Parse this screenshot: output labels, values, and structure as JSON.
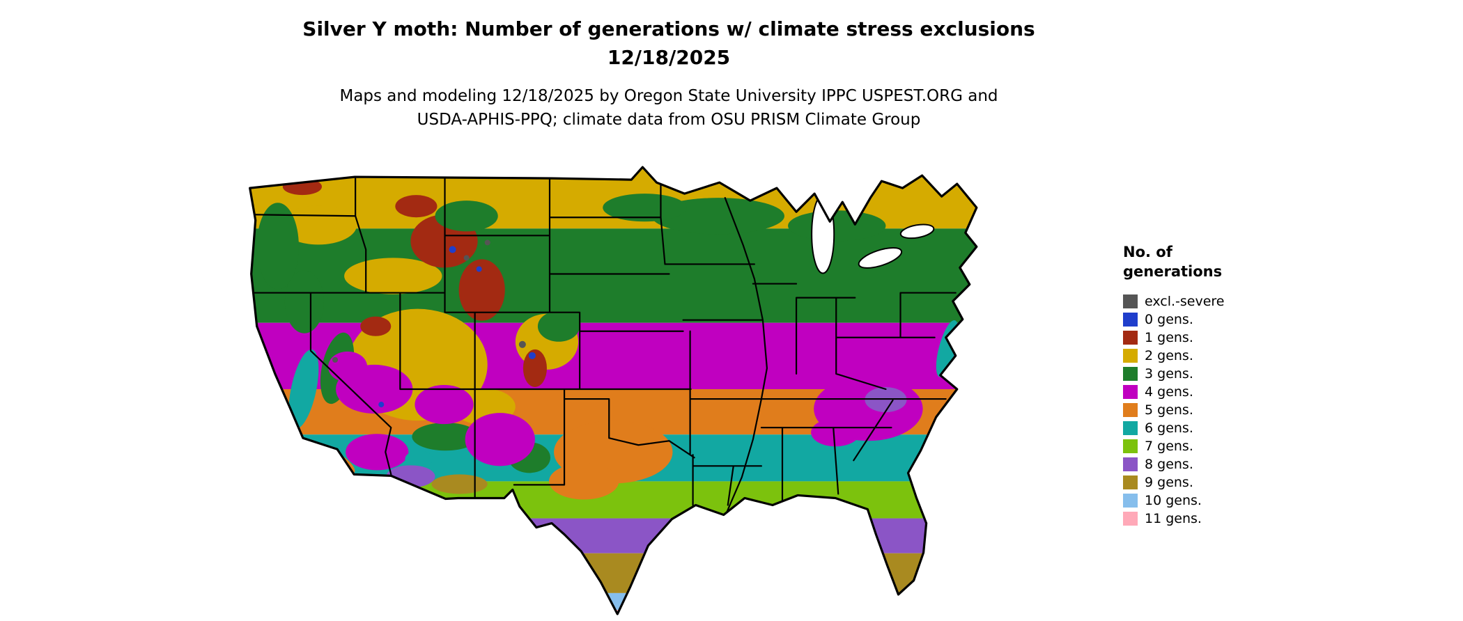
{
  "title": {
    "line1": "Silver Y moth: Number of generations w/ climate stress exclusions",
    "line2": "12/18/2025"
  },
  "subtitle": {
    "line1": "Maps and modeling 12/18/2025 by Oregon State University IPPC USPEST.ORG and",
    "line2": "USDA-APHIS-PPQ; climate data from OSU PRISM Climate Group"
  },
  "legend": {
    "title_line1": "No. of",
    "title_line2": "generations",
    "items": [
      {
        "label": "excl.-severe",
        "color": "#555555"
      },
      {
        "label": "0 gens.",
        "color": "#1f3ecc"
      },
      {
        "label": "1 gens.",
        "color": "#a32a12"
      },
      {
        "label": "2 gens.",
        "color": "#d5ab00"
      },
      {
        "label": "3 gens.",
        "color": "#1e7d2b"
      },
      {
        "label": "4 gens.",
        "color": "#c000c0"
      },
      {
        "label": "5 gens.",
        "color": "#e07d1c"
      },
      {
        "label": "6 gens.",
        "color": "#12a8a2"
      },
      {
        "label": "7 gens.",
        "color": "#7cc20d"
      },
      {
        "label": "8 gens.",
        "color": "#8b55c6"
      },
      {
        "label": "9 gens.",
        "color": "#a98a20"
      },
      {
        "label": "10 gens.",
        "color": "#86beec"
      },
      {
        "label": "11 gens.",
        "color": "#ffa9b8"
      }
    ]
  }
}
